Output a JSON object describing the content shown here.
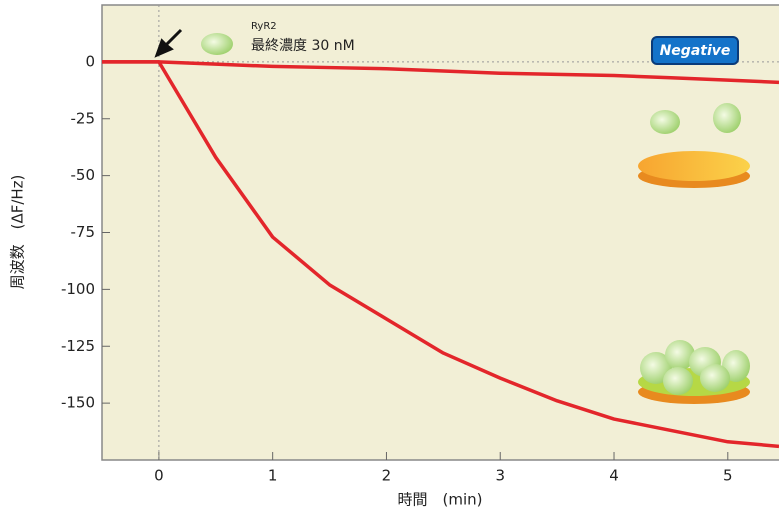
{
  "chart_data": {
    "type": "line",
    "x_label": "時間　(min)",
    "y_label": "周波数　(ΔF/Hz)",
    "annotations": [
      "RyR2",
      "最終濃度 30 nM",
      "Negative"
    ],
    "x": [
      -0.5,
      0,
      0.5,
      1,
      1.5,
      2,
      2.5,
      3,
      3.5,
      4,
      4.5,
      5,
      5.45
    ],
    "series": [
      {
        "name": null,
        "color": "#e3262b",
        "values": [
          0,
          0,
          -1,
          -2,
          -2.5,
          -3,
          -4,
          -5,
          -5.5,
          -6,
          -7,
          -8,
          -9
        ]
      },
      {
        "name": null,
        "color": "#e3262b",
        "values": [
          0,
          0,
          -42,
          -77,
          -98,
          -113,
          -128,
          -139,
          -149,
          -157,
          -162,
          -167,
          -169
        ]
      }
    ],
    "xlim": [
      -0.5,
      5.45
    ],
    "xticks": [
      0,
      1,
      2,
      3,
      4,
      5
    ],
    "ylim": [
      -175,
      25
    ],
    "yticks": [
      0,
      -25,
      -50,
      -75,
      -100,
      -125,
      -150
    ]
  }
}
